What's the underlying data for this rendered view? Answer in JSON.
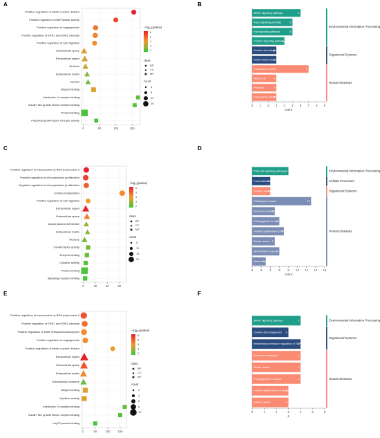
{
  "chart_data": [
    {
      "panel": "A",
      "type": "scatter",
      "categories": [
        "Positive regulation of mitotic nuclear division",
        "Positive regulation of MAP kinase activity",
        "Positive regulation of angiogenesis",
        "Positive regulation of ERK1 and ERK2 cascade",
        "Positive regulation of cell migration",
        "Extracellular space",
        "Extracellular region",
        "Nucleus",
        "Extracellular matrix",
        "Cytosol",
        "Integrin binding",
        "Interleukin−1 receptor binding",
        "Insulin−like growth factor receptor binding",
        "Protein binding",
        "Placental growth factor receptor activity"
      ],
      "x": [
        155,
        100,
        38,
        37,
        35,
        3,
        5,
        7,
        12,
        15,
        32,
        168,
        158,
        4,
        40
      ],
      "count": [
        4,
        4,
        5,
        5,
        4,
        5,
        5,
        4,
        3,
        3,
        4,
        2,
        2,
        12,
        2
      ],
      "class": [
        "BP",
        "BP",
        "BP",
        "BP",
        "BP",
        "CC",
        "CC",
        "CC",
        "CC",
        "CC",
        "MF",
        "MF",
        "MF",
        "MF",
        "MF"
      ],
      "neglog10": [
        6.0,
        5.2,
        4.2,
        4.0,
        3.8,
        3.2,
        3.0,
        2.8,
        2.0,
        1.8,
        3.2,
        1.5,
        1.3,
        1.2,
        1.1
      ],
      "xticks": [
        0,
        50,
        100,
        150
      ],
      "xlim": [
        -5,
        175
      ],
      "color_legend": {
        "title": "−log₁₀(pvalue)",
        "ticks": [
          "6",
          "5",
          "4",
          "3",
          "2"
        ],
        "min": 1,
        "max": 6
      },
      "class_legend": {
        "title": "class",
        "items": [
          "BP",
          "CC",
          "MF"
        ]
      },
      "count_legend": {
        "title": "count",
        "items": [
          "4",
          "8",
          "12",
          "16"
        ]
      }
    },
    {
      "panel": "B",
      "type": "bar",
      "categories": [
        "MAPK signaling pathway",
        "Rap1 signaling pathway",
        "Ras signaling pathway",
        "Calcium signaling pathway",
        "Ovarian steroidogenesis",
        "Inflammatory mediator regulation of TRP channels",
        "Pathways in cancer",
        "Melanoma",
        "Pertussis",
        "Rheumatoid arthritis"
      ],
      "values": [
        6,
        5,
        5,
        4,
        3,
        3,
        7,
        3,
        3,
        3
      ],
      "group": [
        0,
        0,
        0,
        0,
        1,
        1,
        2,
        2,
        2,
        2
      ],
      "groups": [
        "Environmental Information Processing",
        "Organismal Systems",
        "Human Diseases"
      ],
      "xticks": [
        0,
        1,
        2,
        3,
        4,
        5,
        6,
        7,
        8,
        9
      ],
      "xlim": [
        0,
        9
      ],
      "xlabel": "count"
    },
    {
      "panel": "C",
      "type": "scatter",
      "categories": [
        "Positive regulation of transcription by RNA polymerase II",
        "Positive regulation of cell population proliferation",
        "Negative regulation of cell population proliferation",
        "Embryo implantation",
        "Positive regulation of cell migration",
        "Extracellular region",
        "Extracellular space",
        "Apical plasma membrane",
        "Extracellular matrix",
        "Nucleus",
        "Growth factor activity",
        "Enzyme binding",
        "Cytokine activity",
        "Protein binding",
        "Signaling receptor binding"
      ],
      "x": [
        5,
        4,
        5,
        65,
        8,
        4,
        6,
        5,
        7,
        2,
        8,
        6,
        4,
        2,
        3
      ],
      "count": [
        10,
        10,
        9,
        10,
        6,
        12,
        8,
        5,
        4,
        6,
        5,
        5,
        5,
        20,
        5
      ],
      "class": [
        "BP",
        "BP",
        "BP",
        "BP",
        "BP",
        "CC",
        "CC",
        "CC",
        "CC",
        "CC",
        "MF",
        "MF",
        "MF",
        "MF",
        "MF"
      ],
      "neglog10": [
        6.0,
        5.5,
        5.0,
        4.2,
        4.0,
        6.0,
        4.5,
        3.0,
        2.8,
        2.6,
        2.6,
        2.4,
        2.3,
        2.2,
        2.1
      ],
      "xticks": [
        0,
        20,
        40,
        60
      ],
      "xlim": [
        -3,
        72
      ],
      "color_legend": {
        "title": "−log₁₀(pvalue)",
        "ticks": [
          "6",
          "5",
          "4",
          "3",
          "2"
        ],
        "min": 2,
        "max": 6
      },
      "class_legend": {
        "title": "class",
        "items": [
          "BP",
          "CC",
          "MF"
        ]
      },
      "count_legend": {
        "title": "count",
        "items": [
          "5",
          "10",
          "15",
          "20"
        ]
      }
    },
    {
      "panel": "D",
      "type": "bar",
      "categories": [
        "PI3K-Akt signaling pathway",
        "Focal adhesion",
        "Ovarian steroidogenesis",
        "Pathways in cancer",
        "Endocrine resistance",
        "Proteoglycans in cancer",
        "Human papillomavirus infection",
        "Breast cancer",
        "MicroRNAs in cancer",
        "Melanoma"
      ],
      "values": [
        8,
        4,
        4,
        13,
        5,
        6,
        7,
        5,
        6,
        3
      ],
      "group": [
        0,
        1,
        2,
        3,
        3,
        3,
        3,
        3,
        3,
        3
      ],
      "groups": [
        "Environmental Information Processing",
        "Cellular Processes",
        "Organismal Systems",
        "Human Diseases"
      ],
      "xticks": [
        0,
        2,
        4,
        6,
        8,
        10,
        12,
        14,
        16
      ],
      "xlim": [
        0,
        16
      ],
      "xlabel": "count"
    },
    {
      "panel": "E",
      "type": "scatter",
      "categories": [
        "Positive regulation of transcription by RNA polymerase II",
        "Positive regulation of ERK1 and ERK2 cascade",
        "Positive regulation of DNA−templated transcription",
        "Positive regulation of angiogenesis",
        "Positive regulation of mitotic nuclear division",
        "Extracellular region",
        "Extracellular space",
        "Extracellular matrix",
        "Extracellular exosome",
        "Integrin binding",
        "Cytokine activity",
        "Interleukin−1 receptor binding",
        "Insulin−like growth factor receptor binding",
        "Hsp70 protein binding"
      ],
      "x": [
        4,
        8,
        5,
        10,
        120,
        6,
        5,
        3,
        3,
        10,
        6,
        168,
        150,
        50
      ],
      "count": [
        8,
        6,
        6,
        5,
        3,
        10,
        8,
        6,
        4,
        4,
        4,
        2,
        2,
        2
      ],
      "class": [
        "BP",
        "BP",
        "BP",
        "BP",
        "BP",
        "CC",
        "CC",
        "CC",
        "CC",
        "MF",
        "MF",
        "MF",
        "MF",
        "MF"
      ],
      "neglog10": [
        5.0,
        4.5,
        4.0,
        4.0,
        3.6,
        6.0,
        5.0,
        4.0,
        2.0,
        3.5,
        3.5,
        2.0,
        1.8,
        1.6
      ],
      "xticks": [
        0,
        50,
        100,
        150
      ],
      "xlim": [
        -5,
        175
      ],
      "color_legend": {
        "title": "−log₁₀(pvalue)",
        "ticks": [
          "6",
          "5",
          "4",
          "3",
          "2"
        ],
        "min": 1.5,
        "max": 6
      },
      "class_legend": {
        "title": "class",
        "items": [
          "BP",
          "CC",
          "MF"
        ]
      },
      "count_legend": {
        "title": "count",
        "items": [
          "2",
          "4",
          "6",
          "8",
          "10"
        ]
      }
    },
    {
      "panel": "F",
      "type": "bar",
      "categories": [
        "MAPK signaling pathway",
        "Ovarian steroidogenesis",
        "Inflammatory mediator regulation of TRP channels",
        "Endocrine resistance",
        "Breast cancer",
        "Proteoglycans in cancer",
        "Human papillomavirus infection",
        "Gastric cancer"
      ],
      "values": [
        4,
        3,
        4,
        4,
        4,
        4,
        3,
        3
      ],
      "group": [
        0,
        1,
        1,
        2,
        2,
        2,
        2,
        2
      ],
      "groups": [
        "Environmental Information Processing",
        "Organismal Systems",
        "Human Diseases"
      ],
      "xticks": [
        0,
        1,
        2,
        3,
        4,
        5,
        6
      ],
      "xlim": [
        0,
        6
      ],
      "xlabel": "s"
    }
  ],
  "colors": {
    "group_colors": [
      "#1f9e89",
      "#2b4c7e",
      "#fa8a72",
      "#7c8db5"
    ],
    "scale_high": "#e8202a",
    "scale_mid": "#f29a2e",
    "scale_low": "#3cc83c",
    "scatter_bg": "#ffffff"
  }
}
